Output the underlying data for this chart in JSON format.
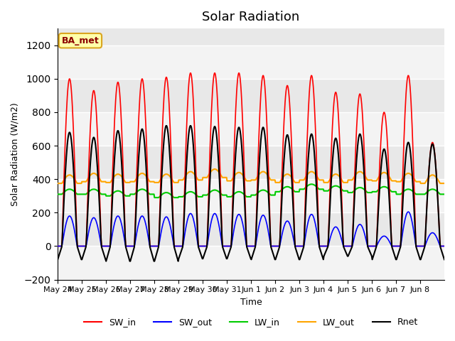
{
  "title": "Solar Radiation",
  "xlabel": "Time",
  "ylabel": "Solar Radiation (W/m2)",
  "ylim": [
    -200,
    1300
  ],
  "yticks": [
    -200,
    0,
    200,
    400,
    600,
    800,
    1000,
    1200
  ],
  "annotation_label": "BA_met",
  "background_color": "#ffffff",
  "plot_bg_color": "#e8e8e8",
  "legend_entries": [
    "SW_in",
    "SW_out",
    "LW_in",
    "LW_out",
    "Rnet"
  ],
  "line_colors": {
    "SW_in": "#ff0000",
    "SW_out": "#0000ff",
    "LW_in": "#00cc00",
    "LW_out": "#ffa500",
    "Rnet": "#000000"
  },
  "n_days": 15,
  "xtick_labels": [
    "May 24",
    "May 25",
    "May 26",
    "May 27",
    "May 28",
    "May 29",
    "May 30",
    "May 31",
    "Jun 1",
    "Jun 2",
    "Jun 3",
    "Jun 4",
    "Jun 5",
    "Jun 6",
    "Jun 7",
    "Jun 8"
  ],
  "SW_in_peaks": [
    1000,
    930,
    980,
    1000,
    1010,
    1035,
    1035,
    1035,
    1020,
    960,
    1020,
    920,
    910,
    800,
    1020,
    620
  ],
  "SW_out_peaks": [
    180,
    170,
    180,
    180,
    175,
    195,
    195,
    190,
    185,
    150,
    190,
    115,
    130,
    60,
    205,
    80
  ],
  "LW_in_base": [
    310,
    310,
    300,
    310,
    290,
    295,
    305,
    295,
    305,
    325,
    340,
    330,
    320,
    325,
    310,
    310
  ],
  "LW_out_base": [
    375,
    385,
    380,
    385,
    380,
    395,
    410,
    390,
    395,
    380,
    395,
    380,
    395,
    390,
    385,
    375
  ],
  "Rnet_peaks": [
    680,
    650,
    690,
    700,
    720,
    720,
    715,
    710,
    710,
    665,
    670,
    645,
    670,
    580,
    620,
    610
  ],
  "Rnet_night_min": [
    -80,
    -80,
    -90,
    -90,
    -90,
    -75,
    -75,
    -75,
    -80,
    -80,
    -80,
    -60,
    -60,
    -80,
    -80,
    -80
  ]
}
